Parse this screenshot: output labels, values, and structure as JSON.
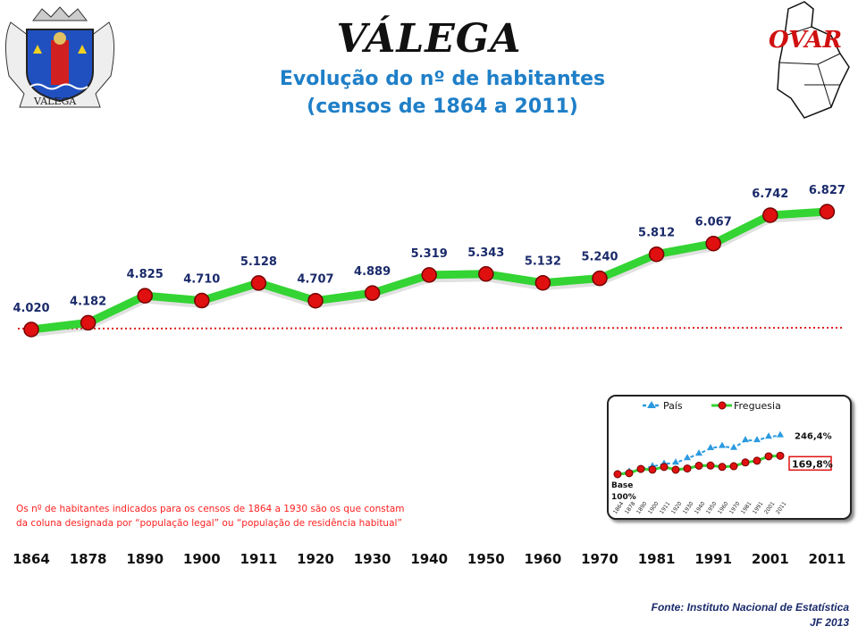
{
  "header": {
    "title": "VÁLEGA",
    "subtitle_line1": "Evolução do nº de habitantes",
    "subtitle_line2": "(censos de 1864 a 2011)",
    "crest_label": "VÁLEGA",
    "map_label": "OVAR"
  },
  "note": {
    "line1": "Os nº de habitantes indicados para os censos de 1864 a 1930 são os que constam",
    "line2": "da coluna designada por “população legal” ou “população de residência habitual”"
  },
  "source": {
    "line1": "Fonte: Instituto Nacional de Estatística",
    "line2": "JF 2013"
  },
  "colors": {
    "line": "#33d433",
    "marker": "#e01010",
    "baseline": "#e02020",
    "value_label": "#1a2a6a",
    "pais": "#2a9ae0"
  },
  "chart_data": [
    {
      "type": "line",
      "title": "Evolução do nº de habitantes",
      "categories": [
        "1864",
        "1878",
        "1890",
        "1900",
        "1911",
        "1920",
        "1930",
        "1940",
        "1950",
        "1960",
        "1970",
        "1981",
        "1991",
        "2001",
        "2011"
      ],
      "values": [
        4020,
        4182,
        4825,
        4710,
        5128,
        4707,
        4889,
        5319,
        5343,
        5132,
        5240,
        5812,
        6067,
        6742,
        6827
      ],
      "labels": [
        "4.020",
        "4.182",
        "4.825",
        "4.710",
        "5.128",
        "4.707",
        "4.889",
        "5.319",
        "5.343",
        "5.132",
        "5.240",
        "5.812",
        "6.067",
        "6.742",
        "6.827"
      ],
      "baseline": 4020,
      "ylim": [
        4020,
        6827
      ],
      "grid": false
    },
    {
      "type": "line",
      "categories": [
        "1864",
        "1878",
        "1890",
        "1900",
        "1911",
        "1920",
        "1930",
        "1940",
        "1950",
        "1960",
        "1970",
        "1981",
        "1991",
        "2001",
        "2011"
      ],
      "legend": [
        "País",
        "Freguesia"
      ],
      "legend_position": "top",
      "series": [
        {
          "name": "País",
          "values": [
            100,
            109,
            120,
            129,
            139,
            143,
            160,
            177,
            198,
            206,
            199,
            228,
            228,
            241,
            246.4
          ]
        },
        {
          "name": "Freguesia",
          "values": [
            100,
            104.0,
            120.0,
            117.2,
            127.6,
            117.1,
            121.6,
            132.3,
            132.9,
            127.7,
            130.3,
            144.6,
            150.9,
            167.7,
            169.8
          ]
        }
      ],
      "annotations": {
        "base": "Base",
        "base_pct": "100%",
        "pais_end": "246,4%",
        "freguesia_end": "169,8%"
      },
      "ylim": [
        100,
        250
      ]
    }
  ]
}
